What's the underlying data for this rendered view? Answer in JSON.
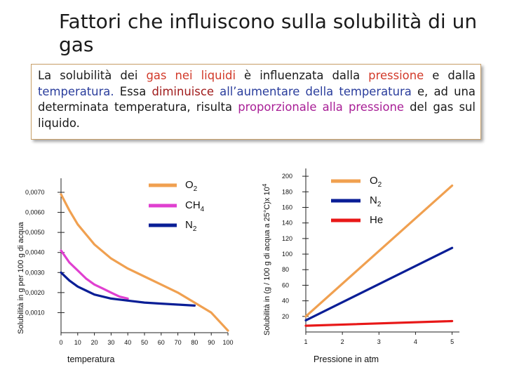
{
  "title": "Fattori che influiscono sulla solubilità di un gas",
  "intro": {
    "s1": "La solubilità dei ",
    "s2": "gas nei liquidi",
    "s3": " è influenzata dalla ",
    "s4": "pressione",
    "s5": " e dalla ",
    "s6": "temperatura.",
    "s7": " Essa ",
    "s8": "diminuisce",
    "s9": " all’aumentare della temperatura",
    "s10": " e, ad una determinata temperatura, risulta ",
    "s11": "proporzionale alla pressione",
    "s12": " del gas sul liquido."
  },
  "colors": {
    "o2": "#f0a050",
    "ch4": "#e040d0",
    "n2": "#0a1e96",
    "he": "#e81818"
  },
  "chart_data": [
    {
      "type": "line",
      "xlabel": "temperatura",
      "ylabel": "Solubilità in g per 100 g di acqua",
      "x_ticks": [
        0,
        10,
        20,
        30,
        40,
        50,
        60,
        70,
        80,
        90,
        100
      ],
      "y_ticks": [
        "0,0010",
        "0,0020",
        "0,0030",
        "0,0040",
        "0,0050",
        "0,0060",
        "0,0070"
      ],
      "y_tick_values": [
        0.001,
        0.002,
        0.003,
        0.004,
        0.005,
        0.006,
        0.007
      ],
      "xlim": [
        0,
        100
      ],
      "ylim": [
        0,
        0.0077
      ],
      "legend_position": "top-right",
      "series": [
        {
          "name": "O",
          "sub": "2",
          "color_key": "o2",
          "x": [
            0,
            5,
            10,
            15,
            20,
            30,
            40,
            50,
            60,
            70,
            80,
            90,
            100
          ],
          "y": [
            0.0069,
            0.0061,
            0.0054,
            0.0049,
            0.0044,
            0.0037,
            0.0032,
            0.0028,
            0.0024,
            0.002,
            0.0015,
            0.001,
            0.0001
          ]
        },
        {
          "name": "CH",
          "sub": "4",
          "color_key": "ch4",
          "x": [
            0,
            5,
            10,
            15,
            20,
            25,
            30,
            35,
            40
          ],
          "y": [
            0.0041,
            0.0035,
            0.0031,
            0.0027,
            0.0024,
            0.0022,
            0.002,
            0.0018,
            0.0017
          ]
        },
        {
          "name": "N",
          "sub": "2",
          "color_key": "n2",
          "x": [
            0,
            5,
            10,
            15,
            20,
            30,
            40,
            50,
            60,
            70,
            80
          ],
          "y": [
            0.003,
            0.0026,
            0.0023,
            0.0021,
            0.0019,
            0.0017,
            0.0016,
            0.0015,
            0.00145,
            0.0014,
            0.00135
          ]
        }
      ]
    },
    {
      "type": "line",
      "xlabel": "Pressione in atm",
      "ylabel": "Solubilità in (g / 100 g di acqua a 25°C)x 10",
      "ylabel_sup": "4",
      "x_ticks": [
        1,
        2,
        3,
        4,
        5
      ],
      "y_ticks": [
        20,
        40,
        60,
        80,
        100,
        120,
        140,
        160,
        180,
        200
      ],
      "xlim": [
        1,
        5.2
      ],
      "ylim": [
        0,
        210
      ],
      "legend_position": "top-right",
      "series": [
        {
          "name": "O",
          "sub": "2",
          "color_key": "o2",
          "x": [
            1,
            5
          ],
          "y": [
            20,
            188
          ]
        },
        {
          "name": "N",
          "sub": "2",
          "color_key": "n2",
          "x": [
            1,
            5
          ],
          "y": [
            15,
            108
          ]
        },
        {
          "name": "He",
          "sub": "",
          "color_key": "he",
          "x": [
            1,
            5
          ],
          "y": [
            8,
            14
          ]
        }
      ]
    }
  ]
}
